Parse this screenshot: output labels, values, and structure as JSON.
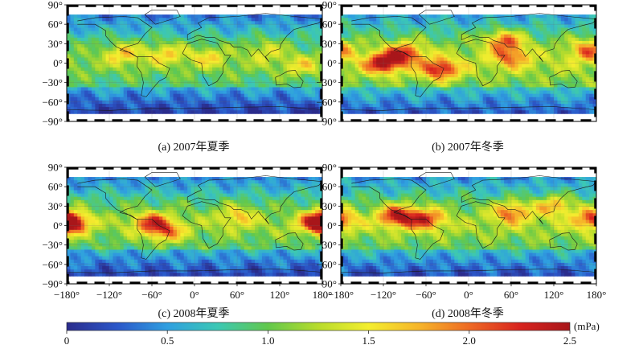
{
  "chart_data": {
    "type": "heatmap",
    "colorbar": {
      "min": 0,
      "max": 2.5,
      "ticks": [
        "0",
        "0.5",
        "1.0",
        "1.5",
        "2.0",
        "2.5"
      ],
      "unit": "(mPa)",
      "colors": [
        "#2b2c8c",
        "#2b57c9",
        "#2f9fe0",
        "#3cc8b4",
        "#62c84c",
        "#b8dc2c",
        "#f4ee2e",
        "#f6b52a",
        "#ee6a24",
        "#d8241f",
        "#a8161a"
      ]
    },
    "x_ticks": [
      "−180°",
      "−120°",
      "−60°",
      "0°",
      "60°",
      "120°",
      "180°"
    ],
    "y_ticks": [
      "90°",
      "60°",
      "30°",
      "0°",
      "−30°",
      "−60°",
      "−90°"
    ],
    "xlim": [
      -180,
      180
    ],
    "ylim": [
      -90,
      90
    ],
    "panels": [
      {
        "id": "a",
        "caption": "(a) 2007年夏季",
        "mean_level": 0.85,
        "hotspots": [
          {
            "lon": -100,
            "lat": 15,
            "value": 1.5
          },
          {
            "lon": -40,
            "lat": 15,
            "value": 1.45
          },
          {
            "lon": 20,
            "lat": 10,
            "value": 1.35
          },
          {
            "lon": 100,
            "lat": 20,
            "value": 1.3
          },
          {
            "lon": 150,
            "lat": -5,
            "value": 1.3
          }
        ]
      },
      {
        "id": "b",
        "caption": "(b) 2007年冬季",
        "mean_level": 1.0,
        "hotspots": [
          {
            "lon": -120,
            "lat": 0,
            "value": 2.3
          },
          {
            "lon": -90,
            "lat": 15,
            "value": 2.1
          },
          {
            "lon": -40,
            "lat": -10,
            "value": 2.2
          },
          {
            "lon": 50,
            "lat": 35,
            "value": 2.0
          },
          {
            "lon": 60,
            "lat": 10,
            "value": 1.8
          },
          {
            "lon": 170,
            "lat": 20,
            "value": 1.9
          }
        ]
      },
      {
        "id": "c",
        "caption": "(c) 2008年夏季",
        "mean_level": 0.9,
        "hotspots": [
          {
            "lon": -175,
            "lat": 5,
            "value": 2.0
          },
          {
            "lon": -60,
            "lat": 5,
            "value": 1.9
          },
          {
            "lon": -40,
            "lat": -10,
            "value": 1.7
          },
          {
            "lon": 60,
            "lat": 15,
            "value": 1.5
          },
          {
            "lon": 175,
            "lat": 5,
            "value": 2.0
          }
        ]
      },
      {
        "id": "d",
        "caption": "(d) 2008年冬季",
        "mean_level": 0.95,
        "hotspots": [
          {
            "lon": -100,
            "lat": 15,
            "value": 2.3
          },
          {
            "lon": -60,
            "lat": 10,
            "value": 2.0
          },
          {
            "lon": 60,
            "lat": 20,
            "value": 1.9
          },
          {
            "lon": 120,
            "lat": 30,
            "value": 1.7
          },
          {
            "lon": 175,
            "lat": 10,
            "value": 2.0
          }
        ]
      }
    ]
  }
}
